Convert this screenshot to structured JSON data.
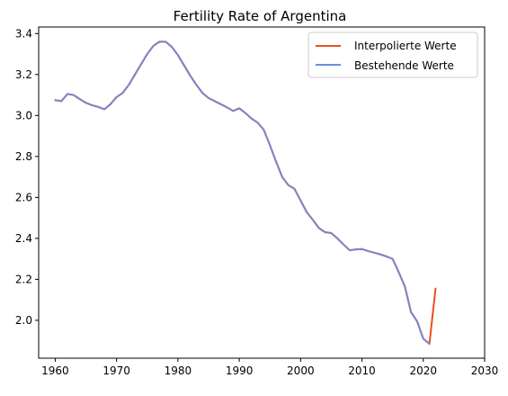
{
  "chart_data": {
    "type": "line",
    "title": "Fertility Rate of Argentina",
    "xlabel": "",
    "ylabel": "",
    "xlim": [
      1957.3,
      2030
    ],
    "ylim": [
      1.815,
      3.432
    ],
    "xticks": [
      1960,
      1970,
      1980,
      1990,
      2000,
      2010,
      2020,
      2030
    ],
    "yticks": [
      2.0,
      2.2,
      2.4,
      2.6,
      2.8,
      3.0,
      3.2,
      3.4
    ],
    "ytick_labels": [
      "2.0",
      "2.2",
      "2.4",
      "2.6",
      "2.8",
      "3.0",
      "3.2",
      "3.4"
    ],
    "grid": false,
    "legend_position": "top-right",
    "colors": {
      "interpolated": "#e8501b",
      "existing": "#6a8fdd",
      "existing_overlap": "#7b86c9"
    },
    "series": [
      {
        "name": "Interpolierte Werte",
        "color_key": "interpolated",
        "x": [
          1960,
          1961,
          1962,
          1963,
          1964,
          1965,
          1966,
          1967,
          1968,
          1969,
          1970,
          1971,
          1972,
          1973,
          1974,
          1975,
          1976,
          1977,
          1978,
          1979,
          1980,
          1981,
          1982,
          1983,
          1984,
          1985,
          1986,
          1987,
          1988,
          1989,
          1990,
          1991,
          1992,
          1993,
          1994,
          1995,
          1996,
          1997,
          1998,
          1999,
          2000,
          2001,
          2002,
          2003,
          2004,
          2005,
          2006,
          2007,
          2008,
          2009,
          2010,
          2011,
          2012,
          2013,
          2014,
          2015,
          2016,
          2017,
          2018,
          2019,
          2020,
          2021,
          2022
        ],
        "values": [
          3.075,
          3.07,
          3.105,
          3.1,
          3.08,
          3.062,
          3.05,
          3.042,
          3.03,
          3.055,
          3.09,
          3.11,
          3.15,
          3.2,
          3.25,
          3.3,
          3.34,
          3.36,
          3.36,
          3.335,
          3.295,
          3.245,
          3.195,
          3.15,
          3.11,
          3.085,
          3.07,
          3.055,
          3.04,
          3.022,
          3.035,
          3.012,
          2.985,
          2.965,
          2.93,
          2.855,
          2.775,
          2.7,
          2.66,
          2.642,
          2.585,
          2.528,
          2.49,
          2.45,
          2.43,
          2.426,
          2.4,
          2.37,
          2.342,
          2.346,
          2.348,
          2.338,
          2.33,
          2.322,
          2.312,
          2.3,
          2.235,
          2.165,
          2.04,
          1.995,
          1.91,
          1.885,
          2.155
        ]
      },
      {
        "name": "Bestehende Werte",
        "color_key": "existing",
        "x": [
          1960,
          1961,
          1962,
          1963,
          1964,
          1965,
          1966,
          1967,
          1968,
          1969,
          1970,
          1971,
          1972,
          1973,
          1974,
          1975,
          1976,
          1977,
          1978,
          1979,
          1980,
          1981,
          1982,
          1983,
          1984,
          1985,
          1986,
          1987,
          1988,
          1989,
          1990,
          1991,
          1992,
          1993,
          1994,
          1995,
          1996,
          1997,
          1998,
          1999,
          2000,
          2001,
          2002,
          2003,
          2004,
          2005,
          2006,
          2007,
          2008,
          2009,
          2010,
          2011,
          2012,
          2013,
          2014,
          2015,
          2016,
          2017,
          2018,
          2019,
          2020,
          2021
        ],
        "values": [
          3.075,
          3.07,
          3.105,
          3.1,
          3.08,
          3.062,
          3.05,
          3.042,
          3.03,
          3.055,
          3.09,
          3.11,
          3.15,
          3.2,
          3.25,
          3.3,
          3.34,
          3.36,
          3.36,
          3.335,
          3.295,
          3.245,
          3.195,
          3.15,
          3.11,
          3.085,
          3.07,
          3.055,
          3.04,
          3.022,
          3.035,
          3.012,
          2.985,
          2.965,
          2.93,
          2.855,
          2.775,
          2.7,
          2.66,
          2.642,
          2.585,
          2.528,
          2.49,
          2.45,
          2.43,
          2.426,
          2.4,
          2.37,
          2.342,
          2.346,
          2.348,
          2.338,
          2.33,
          2.322,
          2.312,
          2.3,
          2.235,
          2.165,
          2.04,
          1.995,
          1.91,
          1.885
        ]
      }
    ]
  }
}
